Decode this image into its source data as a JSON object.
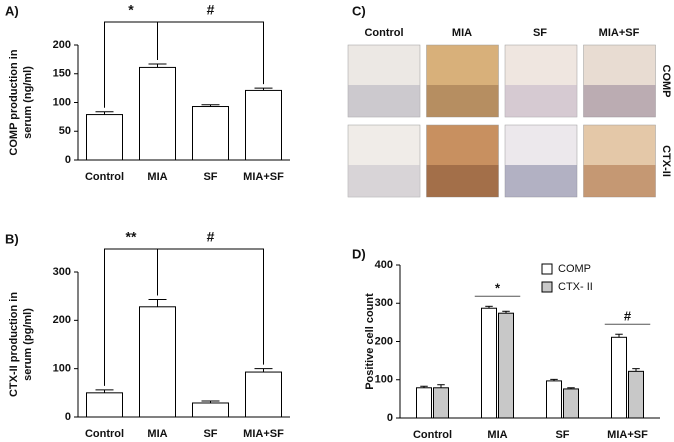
{
  "chart_data": [
    {
      "type": "bar",
      "panel_label": "A)",
      "ylabel": [
        "COMP production in",
        "serum (ng/ml)"
      ],
      "categories": [
        "Control",
        "MIA",
        "SF",
        "MIA+SF"
      ],
      "values": [
        79,
        161,
        93,
        121
      ],
      "errors": [
        5,
        6,
        3,
        4
      ],
      "color": "#ffffff",
      "ylim": [
        0,
        200
      ],
      "yticks": [
        0,
        50,
        100,
        150,
        200
      ],
      "annotations": [
        {
          "text": "*",
          "categories": [
            "Control",
            "MIA"
          ]
        },
        {
          "text": "#",
          "categories": [
            "MIA",
            "MIA+SF"
          ]
        }
      ]
    },
    {
      "type": "bar",
      "panel_label": "B)",
      "ylabel": [
        "CTX-II production in",
        "serum (pg/ml)"
      ],
      "categories": [
        "Control",
        "MIA",
        "SF",
        "MIA+SF"
      ],
      "values": [
        50,
        228,
        29,
        93
      ],
      "errors": [
        6,
        15,
        4,
        7
      ],
      "color": "#ffffff",
      "ylim": [
        0,
        300
      ],
      "yticks": [
        0,
        100,
        200,
        300
      ],
      "annotations": [
        {
          "text": "**",
          "categories": [
            "Control",
            "MIA"
          ]
        },
        {
          "text": "#",
          "categories": [
            "MIA",
            "MIA+SF"
          ]
        }
      ]
    },
    {
      "type": "grouped-bar",
      "panel_label": "D)",
      "ylabel": [
        "Positive cell count"
      ],
      "categories": [
        "Control",
        "MIA",
        "SF",
        "MIA+SF"
      ],
      "series": [
        {
          "name": "COMP",
          "color": "#ffffff",
          "values": [
            79,
            287,
            97,
            211
          ],
          "errors": [
            4,
            5,
            4,
            8
          ]
        },
        {
          "name": "CTX- II",
          "color": "#c8c8c8",
          "values": [
            79,
            274,
            76,
            122
          ],
          "errors": [
            8,
            5,
            3,
            7
          ]
        }
      ],
      "ylim": [
        0,
        400
      ],
      "yticks": [
        0,
        100,
        200,
        300,
        400
      ],
      "legend": "upper right",
      "annotations": [
        {
          "text": "*",
          "categories": [
            "MIA",
            "MIA"
          ]
        },
        {
          "text": "#",
          "categories": [
            "MIA+SF",
            "MIA+SF"
          ]
        }
      ]
    }
  ],
  "image_panel": {
    "panel_label": "C)",
    "columns": [
      "Control",
      "MIA",
      "SF",
      "MIA+SF"
    ],
    "rows": [
      "COMP",
      "CTX-II"
    ]
  }
}
